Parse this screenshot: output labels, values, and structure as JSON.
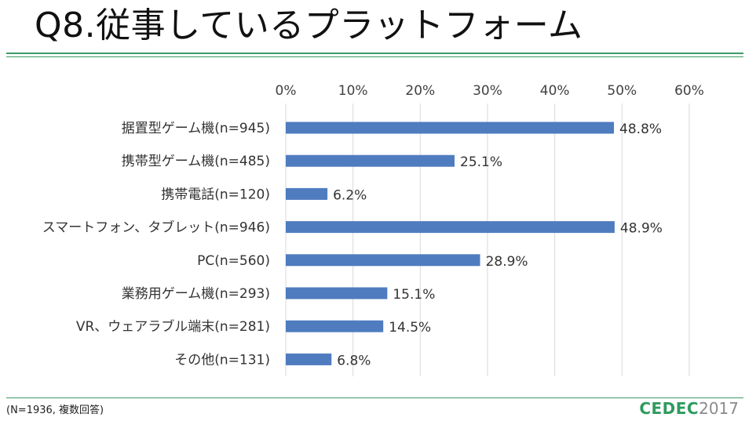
{
  "slide": {
    "title": "Q8.従事しているプラットフォーム",
    "footnote": "(N=1936, 複数回答)",
    "logo_brand": "CEDEC",
    "logo_year": "2017"
  },
  "colors": {
    "bar": "#4f7cbf",
    "rule": "#3b9a67",
    "grid": "#d9d9d9"
  },
  "chart_data": {
    "type": "bar",
    "orientation": "horizontal",
    "categories": [
      "据置型ゲーム機(n=945)",
      "携帯型ゲーム機(n=485)",
      "携帯電話(n=120)",
      "スマートフォン、タブレット(n=946)",
      "PC(n=560)",
      "業務用ゲーム機(n=293)",
      "VR、ウェアラブル端末(n=281)",
      "その他(n=131)"
    ],
    "values": [
      48.8,
      25.1,
      6.2,
      48.9,
      28.9,
      15.1,
      14.5,
      6.8
    ],
    "value_labels": [
      "48.8%",
      "25.1%",
      "6.2%",
      "48.9%",
      "28.9%",
      "15.1%",
      "14.5%",
      "6.8%"
    ],
    "xlim": [
      0,
      60
    ],
    "ticks": [
      0,
      10,
      20,
      30,
      40,
      50,
      60
    ],
    "tick_labels": [
      "0%",
      "10%",
      "20%",
      "30%",
      "40%",
      "50%",
      "60%"
    ],
    "axis_position": "top",
    "grid": true,
    "legend": "none"
  }
}
